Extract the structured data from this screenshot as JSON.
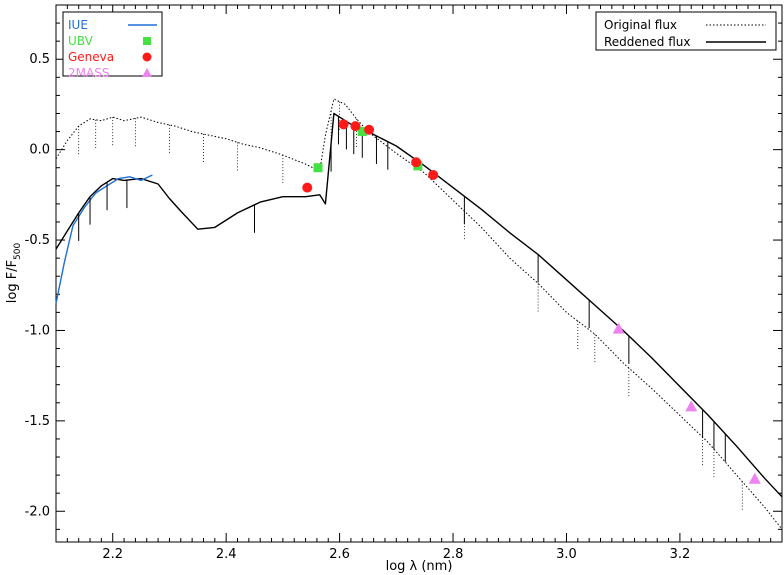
{
  "chart_data": {
    "type": "line",
    "xlabel": "log λ (nm)",
    "ylabel": {
      "base": "log F/F",
      "sub": "500"
    },
    "xlim": [
      2.1,
      3.38
    ],
    "ylim": [
      -2.17,
      0.8
    ],
    "xticks": [
      {
        "value": 2.2,
        "label": "2.2"
      },
      {
        "value": 2.4,
        "label": "2.4"
      },
      {
        "value": 2.6,
        "label": "2.6"
      },
      {
        "value": 2.8,
        "label": "2.8"
      },
      {
        "value": 3.0,
        "label": "3.0"
      },
      {
        "value": 3.2,
        "label": "3.2"
      }
    ],
    "yticks": [
      {
        "value": 0.5,
        "label": "0.5"
      },
      {
        "value": 0.0,
        "label": "0.0"
      },
      {
        "value": -0.5,
        "label": "-0.5"
      },
      {
        "value": -1.0,
        "label": "-1.0"
      },
      {
        "value": -1.5,
        "label": "-1.5"
      },
      {
        "value": -2.0,
        "label": "-2.0"
      }
    ],
    "legend_left": {
      "placement": "top-left",
      "entries": [
        {
          "label": "IUE",
          "color": "#1f6fd6",
          "marker": "line"
        },
        {
          "label": "UBV",
          "color": "#44e044",
          "marker": "square"
        },
        {
          "label": "Geneva",
          "color": "#ff1a1a",
          "marker": "circle"
        },
        {
          "label": "2MASS",
          "color": "#ee82ee",
          "marker": "triangle"
        }
      ]
    },
    "legend_right": {
      "placement": "top-right",
      "entries": [
        {
          "label": "Original  flux",
          "style": "dotted"
        },
        {
          "label": "Reddened  flux",
          "style": "solid"
        }
      ]
    },
    "series": [
      {
        "name": "Original  flux",
        "style": "dotted",
        "color": "#000000",
        "x": [
          2.1,
          2.12,
          2.14,
          2.16,
          2.18,
          2.2,
          2.22,
          2.25,
          2.28,
          2.31,
          2.34,
          2.37,
          2.4,
          2.43,
          2.46,
          2.5,
          2.54,
          2.565,
          2.575,
          2.59,
          2.61,
          2.63,
          2.65,
          2.7,
          2.75,
          2.8,
          2.85,
          2.9,
          2.95,
          3.0,
          3.05,
          3.1,
          3.15,
          3.2,
          3.25,
          3.3,
          3.35,
          3.38
        ],
        "y": [
          -0.05,
          0.05,
          0.13,
          0.17,
          0.16,
          0.18,
          0.16,
          0.18,
          0.15,
          0.13,
          0.1,
          0.08,
          0.06,
          0.03,
          0.01,
          -0.03,
          -0.08,
          -0.12,
          0.08,
          0.28,
          0.25,
          0.17,
          0.1,
          -0.02,
          -0.13,
          -0.28,
          -0.43,
          -0.6,
          -0.74,
          -0.9,
          -1.02,
          -1.18,
          -1.32,
          -1.47,
          -1.62,
          -1.8,
          -1.98,
          -2.1
        ]
      },
      {
        "name": "Reddened  flux",
        "style": "solid",
        "color": "#000000",
        "x": [
          2.1,
          2.12,
          2.14,
          2.16,
          2.18,
          2.2,
          2.22,
          2.25,
          2.28,
          2.3,
          2.32,
          2.35,
          2.38,
          2.42,
          2.46,
          2.5,
          2.54,
          2.565,
          2.575,
          2.59,
          2.61,
          2.63,
          2.65,
          2.7,
          2.75,
          2.8,
          2.85,
          2.9,
          2.95,
          3.0,
          3.05,
          3.1,
          3.15,
          3.2,
          3.25,
          3.3,
          3.35,
          3.38
        ],
        "y": [
          -0.55,
          -0.45,
          -0.35,
          -0.26,
          -0.2,
          -0.16,
          -0.17,
          -0.16,
          -0.19,
          -0.27,
          -0.34,
          -0.44,
          -0.43,
          -0.35,
          -0.29,
          -0.26,
          -0.26,
          -0.25,
          -0.3,
          0.2,
          0.16,
          0.12,
          0.1,
          0.02,
          -0.09,
          -0.21,
          -0.33,
          -0.46,
          -0.58,
          -0.72,
          -0.86,
          -1.0,
          -1.15,
          -1.31,
          -1.47,
          -1.64,
          -1.82,
          -1.92
        ]
      },
      {
        "name": "IUE",
        "style": "solid",
        "color": "#1f6fd6",
        "x": [
          2.1,
          2.115,
          2.13,
          2.15,
          2.17,
          2.19,
          2.21,
          2.23,
          2.25,
          2.27
        ],
        "y": [
          -0.85,
          -0.62,
          -0.42,
          -0.32,
          -0.24,
          -0.2,
          -0.16,
          -0.15,
          -0.17,
          -0.14
        ]
      }
    ],
    "points": [
      {
        "set": "UBV",
        "x": 2.562,
        "y": -0.1
      },
      {
        "set": "UBV",
        "x": 2.64,
        "y": 0.1
      },
      {
        "set": "UBV",
        "x": 2.738,
        "y": -0.09
      },
      {
        "set": "Geneva",
        "x": 2.543,
        "y": -0.21
      },
      {
        "set": "Geneva",
        "x": 2.607,
        "y": 0.14
      },
      {
        "set": "Geneva",
        "x": 2.628,
        "y": 0.13
      },
      {
        "set": "Geneva",
        "x": 2.652,
        "y": 0.11
      },
      {
        "set": "Geneva",
        "x": 2.735,
        "y": -0.07
      },
      {
        "set": "Geneva",
        "x": 2.765,
        "y": -0.14
      },
      {
        "set": "2MASS",
        "x": 3.092,
        "y": -0.99
      },
      {
        "set": "2MASS",
        "x": 3.22,
        "y": -1.42
      },
      {
        "set": "2MASS",
        "x": 3.332,
        "y": -1.82
      }
    ],
    "absorption_lines": {
      "reddened_x": [
        2.14,
        2.16,
        2.19,
        2.225,
        2.45,
        2.585,
        2.598,
        2.612,
        2.625,
        2.64,
        2.665,
        2.685,
        2.82,
        2.95,
        3.04,
        3.11,
        3.24,
        3.26,
        3.28
      ],
      "original_x": [
        2.14,
        2.17,
        2.2,
        2.24,
        2.3,
        2.36,
        2.42,
        2.5,
        2.585,
        2.6,
        2.63,
        2.82,
        2.95,
        3.02,
        3.05,
        3.11,
        3.24,
        3.26,
        3.31
      ]
    },
    "grid": false
  }
}
